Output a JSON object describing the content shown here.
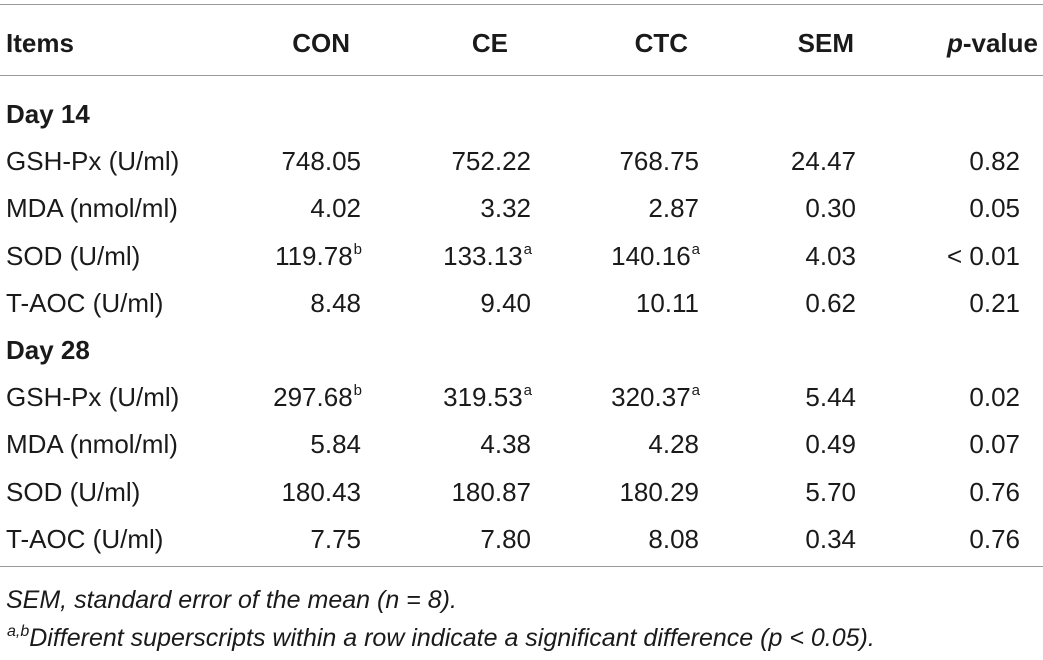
{
  "header": {
    "items": "Items",
    "con": "CON",
    "ce": "CE",
    "ctc": "CTC",
    "sem": "SEM",
    "p_italic": "p",
    "p_rest": "-value"
  },
  "sections": [
    {
      "label": "Day 14",
      "rows": [
        {
          "item": "GSH-Px (U/ml)",
          "con": "748.05",
          "con_sup": "",
          "ce": "752.22",
          "ce_sup": "",
          "ctc": "768.75",
          "ctc_sup": "",
          "sem": "24.47",
          "p": "0.82"
        },
        {
          "item": "MDA (nmol/ml)",
          "con": "4.02",
          "con_sup": "",
          "ce": "3.32",
          "ce_sup": "",
          "ctc": "2.87",
          "ctc_sup": "",
          "sem": "0.30",
          "p": "0.05"
        },
        {
          "item": "SOD (U/ml)",
          "con": "119.78",
          "con_sup": "b",
          "ce": "133.13",
          "ce_sup": "a",
          "ctc": "140.16",
          "ctc_sup": "a",
          "sem": "4.03",
          "p": "< 0.01"
        },
        {
          "item": "T-AOC (U/ml)",
          "con": "8.48",
          "con_sup": "",
          "ce": "9.40",
          "ce_sup": "",
          "ctc": "10.11",
          "ctc_sup": "",
          "sem": "0.62",
          "p": "0.21"
        }
      ]
    },
    {
      "label": "Day 28",
      "rows": [
        {
          "item": "GSH-Px (U/ml)",
          "con": "297.68",
          "con_sup": "b",
          "ce": "319.53",
          "ce_sup": "a",
          "ctc": "320.37",
          "ctc_sup": "a",
          "sem": "5.44",
          "p": "0.02"
        },
        {
          "item": "MDA (nmol/ml)",
          "con": "5.84",
          "con_sup": "",
          "ce": "4.38",
          "ce_sup": "",
          "ctc": "4.28",
          "ctc_sup": "",
          "sem": "0.49",
          "p": "0.07"
        },
        {
          "item": "SOD (U/ml)",
          "con": "180.43",
          "con_sup": "",
          "ce": "180.87",
          "ce_sup": "",
          "ctc": "180.29",
          "ctc_sup": "",
          "sem": "5.70",
          "p": "0.76"
        },
        {
          "item": "T-AOC (U/ml)",
          "con": "7.75",
          "con_sup": "",
          "ce": "7.80",
          "ce_sup": "",
          "ctc": "8.08",
          "ctc_sup": "",
          "sem": "0.34",
          "p": "0.76"
        }
      ]
    }
  ],
  "footnotes": {
    "sem_note": "SEM, standard error of the mean (n = 8).",
    "sig_sup": "a,b",
    "sig_note": "Different superscripts within a row indicate a significant difference (p < 0.05)."
  }
}
